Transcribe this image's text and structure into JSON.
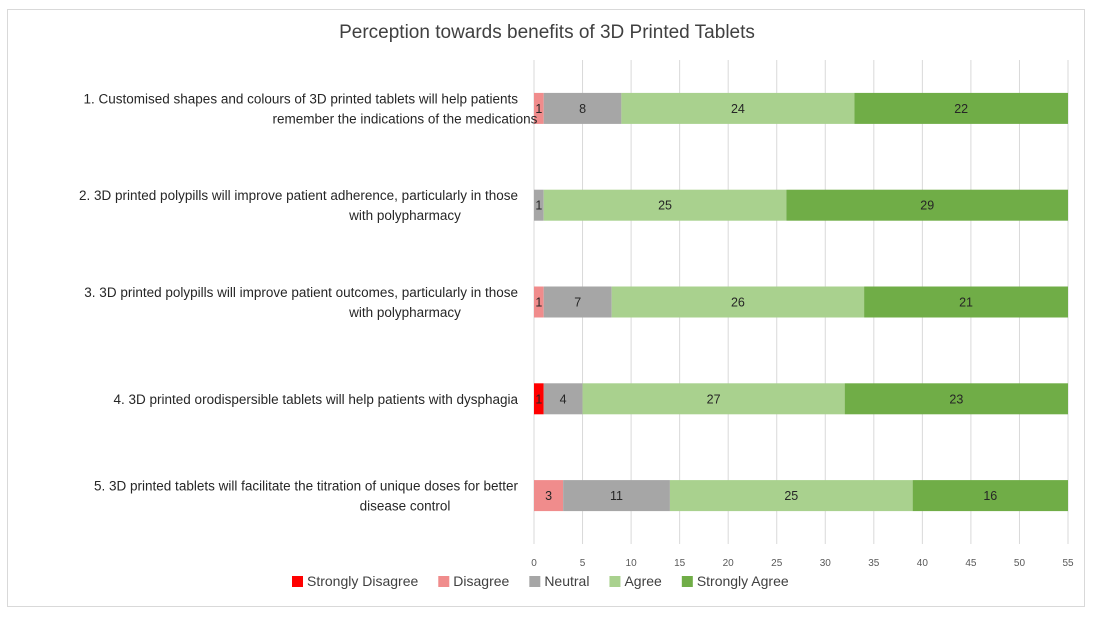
{
  "chart_data": {
    "type": "bar",
    "orientation": "horizontal",
    "stacked": true,
    "title": "Perception towards benefits of 3D Printed Tablets",
    "categories": [
      [
        "1. Customised shapes and colours of 3D printed tablets will help patients",
        "remember the indications of the medications"
      ],
      [
        "2. 3D printed polypills will improve patient adherence, particularly in those",
        "with polypharmacy"
      ],
      [
        "3. 3D printed polypills will improve patient outcomes, particularly in those",
        "with polypharmacy"
      ],
      [
        "4. 3D printed orodispersible tablets will help patients with dysphagia"
      ],
      [
        "5. 3D printed tablets will facilitate the titration of unique doses for better",
        "disease control"
      ]
    ],
    "series": [
      {
        "name": "Strongly Disagree",
        "color": "#ff0000",
        "values": [
          0,
          0,
          0,
          1,
          0
        ]
      },
      {
        "name": "Disagree",
        "color": "#f08c8c",
        "values": [
          1,
          0,
          1,
          0,
          3
        ]
      },
      {
        "name": "Neutral",
        "color": "#a6a6a6",
        "values": [
          8,
          1,
          7,
          4,
          11
        ]
      },
      {
        "name": "Agree",
        "color": "#a9d18e",
        "values": [
          24,
          25,
          26,
          27,
          25
        ]
      },
      {
        "name": "Strongly Agree",
        "color": "#70ad47",
        "values": [
          22,
          29,
          21,
          23,
          16
        ]
      }
    ],
    "xlim": [
      0,
      55
    ],
    "xticks": [
      0,
      5,
      10,
      15,
      20,
      25,
      30,
      35,
      40,
      45,
      50,
      55
    ],
    "grid": true,
    "legend": "bottom"
  }
}
